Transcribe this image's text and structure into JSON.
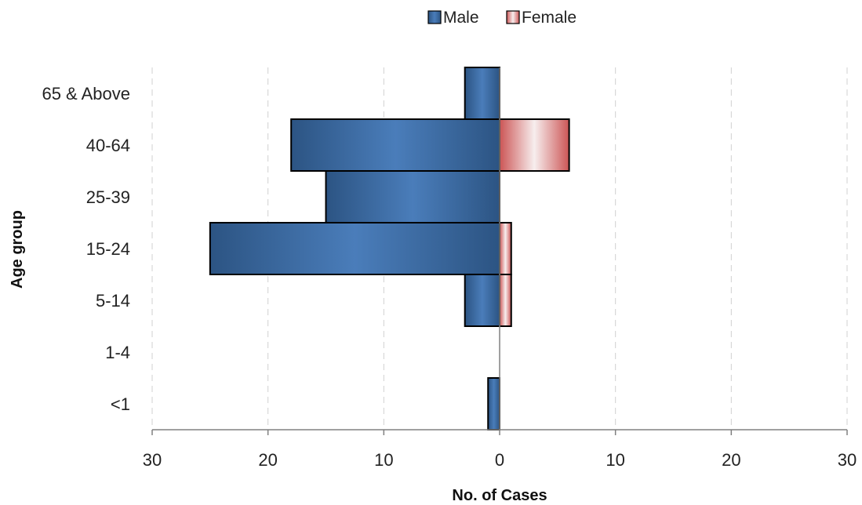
{
  "chart_data": {
    "type": "bar",
    "orientation": "horizontal",
    "layout": "population-pyramid",
    "title": "",
    "xlabel": "No. of Cases",
    "ylabel": "Age group",
    "categories": [
      "65 & Above",
      "40-64",
      "25-39",
      "15-24",
      "5-14",
      "1-4",
      "<1"
    ],
    "series": [
      {
        "name": "Male",
        "side": "left",
        "color": "#3a6aa6",
        "values": [
          3,
          18,
          15,
          25,
          3,
          0,
          1
        ]
      },
      {
        "name": "Female",
        "side": "right",
        "color": "#e06666",
        "values": [
          0,
          6,
          0,
          1,
          1,
          0,
          0
        ]
      }
    ],
    "xlim": [
      -30,
      30
    ],
    "x_ticks": [
      -30,
      -20,
      -10,
      0,
      10,
      20,
      30
    ],
    "x_tick_labels": [
      "30",
      "20",
      "10",
      "0",
      "10",
      "20",
      "30"
    ],
    "grid": "vertical dashed",
    "legend_position": "top-center"
  }
}
